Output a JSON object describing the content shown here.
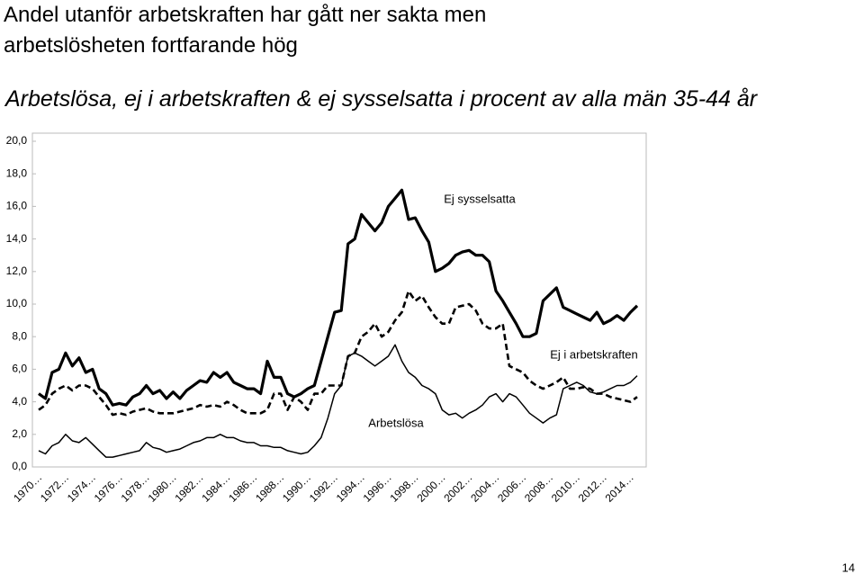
{
  "chart_data": {
    "type": "line",
    "title": "Andel utanför arbetskraften har gått ner sakta men arbetslösheten fortfarande hög",
    "subtitle": "Arbetslösa, ej i arbetskraften & ej sysselsatta i procent av alla män 35-44 år",
    "page_number": "14",
    "categories": [
      "1970…",
      null,
      null,
      null,
      "1972…",
      null,
      null,
      null,
      "1974…",
      null,
      null,
      null,
      "1976…",
      null,
      null,
      null,
      "1978…",
      null,
      null,
      null,
      "1980…",
      null,
      null,
      null,
      "1982…",
      null,
      null,
      null,
      "1984…",
      null,
      null,
      null,
      "1986…",
      null,
      null,
      null,
      "1988…",
      null,
      null,
      null,
      "1990…",
      null,
      null,
      null,
      "1992…",
      null,
      null,
      null,
      "1994…",
      null,
      null,
      null,
      "1996…",
      null,
      null,
      null,
      "1998…",
      null,
      null,
      null,
      "2000…",
      null,
      null,
      null,
      "2002…",
      null,
      null,
      null,
      "2004…",
      null,
      null,
      null,
      "2006…",
      null,
      null,
      null,
      "2008…",
      null,
      null,
      null,
      "2010…",
      null,
      null,
      null,
      "2012…",
      null,
      null,
      null,
      "2014…",
      null
    ],
    "ylim": [
      0,
      20
    ],
    "yticks": [
      {
        "value": 0,
        "label": "0,0"
      },
      {
        "value": 2,
        "label": "2,0"
      },
      {
        "value": 4,
        "label": "4,0"
      },
      {
        "value": 6,
        "label": "6,0"
      },
      {
        "value": 8,
        "label": "8,0"
      },
      {
        "value": 10,
        "label": "10,0"
      },
      {
        "value": 12,
        "label": "12,0"
      },
      {
        "value": 14,
        "label": "14,0"
      },
      {
        "value": 16,
        "label": "16,0"
      },
      {
        "value": 18,
        "label": "18,0"
      },
      {
        "value": 20,
        "label": "20,0"
      }
    ],
    "grid": false,
    "series": [
      {
        "name": "Ej sysselsatta",
        "color": "#000000",
        "style": "bold",
        "values": [
          4.5,
          4.2,
          5.8,
          6.0,
          7.0,
          6.2,
          6.7,
          5.8,
          6.0,
          4.8,
          4.5,
          3.8,
          3.9,
          3.8,
          4.3,
          4.5,
          5.0,
          4.5,
          4.7,
          4.2,
          4.6,
          4.2,
          4.7,
          5.0,
          5.3,
          5.2,
          5.8,
          5.5,
          5.8,
          5.2,
          5.0,
          4.8,
          4.8,
          4.5,
          6.5,
          5.5,
          5.5,
          4.5,
          4.3,
          4.5,
          4.8,
          5.0,
          6.5,
          8.0,
          9.5,
          9.6,
          13.7,
          14.0,
          15.5,
          15.0,
          14.5,
          15.0,
          16.0,
          16.5,
          17.0,
          15.2,
          15.3,
          14.5,
          13.8,
          12.0,
          12.2,
          12.5,
          13.0,
          13.2,
          13.3,
          13.0,
          13.0,
          12.6,
          10.8,
          10.2,
          9.5,
          8.8,
          8.0,
          8.0,
          8.2,
          10.2,
          10.6,
          11.0,
          9.8,
          9.6,
          9.4,
          9.2,
          9.0,
          9.5,
          8.8,
          9.0,
          9.3,
          9.0,
          9.5,
          9.9
        ]
      },
      {
        "name": "Ej i arbetskraften",
        "color": "#000000",
        "style": "dashed",
        "values": [
          3.5,
          3.8,
          4.5,
          4.8,
          5.0,
          4.7,
          5.0,
          5.0,
          4.8,
          4.3,
          3.8,
          3.2,
          3.3,
          3.2,
          3.4,
          3.5,
          3.6,
          3.4,
          3.3,
          3.3,
          3.3,
          3.4,
          3.5,
          3.6,
          3.8,
          3.7,
          3.8,
          3.7,
          4.0,
          3.8,
          3.5,
          3.3,
          3.3,
          3.3,
          3.5,
          4.5,
          4.5,
          3.5,
          4.3,
          4.0,
          3.5,
          4.5,
          4.5,
          5.0,
          5.0,
          5.0,
          6.8,
          7.0,
          8.0,
          8.3,
          8.8,
          8.0,
          8.3,
          9.0,
          9.5,
          10.8,
          10.2,
          10.5,
          9.8,
          9.2,
          8.8,
          8.8,
          9.8,
          9.9,
          10.0,
          9.6,
          8.8,
          8.5,
          8.5,
          8.8,
          6.2,
          6.0,
          5.8,
          5.3,
          5.0,
          4.8,
          5.0,
          5.2,
          5.5,
          4.8,
          4.8,
          4.9,
          4.8,
          4.5,
          4.5,
          4.3,
          4.2,
          4.1,
          4.0,
          4.3
        ]
      },
      {
        "name": "Arbetslösa",
        "color": "#000000",
        "style": "thin",
        "values": [
          1.0,
          0.8,
          1.3,
          1.5,
          2.0,
          1.6,
          1.5,
          1.8,
          1.4,
          1.0,
          0.6,
          0.6,
          0.7,
          0.8,
          0.9,
          1.0,
          1.5,
          1.2,
          1.1,
          0.9,
          1.0,
          1.1,
          1.3,
          1.5,
          1.6,
          1.8,
          1.8,
          2.0,
          1.8,
          1.8,
          1.6,
          1.5,
          1.5,
          1.3,
          1.3,
          1.2,
          1.2,
          1.0,
          0.9,
          0.8,
          0.9,
          1.3,
          1.8,
          3.0,
          4.5,
          5.0,
          6.8,
          7.0,
          6.8,
          6.5,
          6.2,
          6.5,
          6.8,
          7.5,
          6.5,
          5.8,
          5.5,
          5.0,
          4.8,
          4.5,
          3.5,
          3.2,
          3.3,
          3.0,
          3.3,
          3.5,
          3.8,
          4.3,
          4.5,
          4.0,
          4.5,
          4.3,
          3.8,
          3.3,
          3.0,
          2.7,
          3.0,
          3.2,
          4.8,
          5.0,
          5.2,
          5.0,
          4.6,
          4.5,
          4.6,
          4.8,
          5.0,
          5.0,
          5.2,
          5.6
        ]
      }
    ]
  }
}
